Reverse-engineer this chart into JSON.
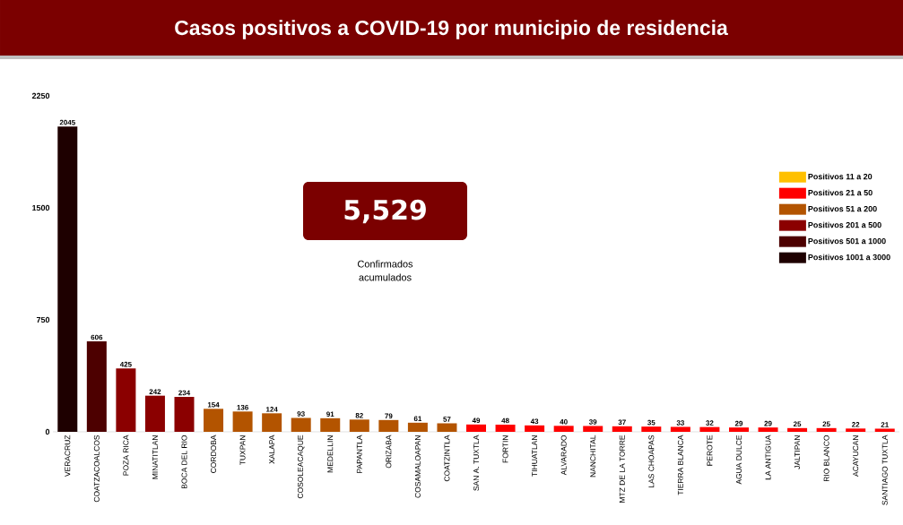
{
  "chart_data": {
    "type": "bar",
    "title": "Casos positivos a COVID-19  por municipio de residencia",
    "categories": [
      "VERACRUZ",
      "COATZACOALCOS",
      "POZA RICA",
      "MINATITLAN",
      "BOCA DEL RIO",
      "CORDOBA",
      "TUXPAN",
      "XALAPA",
      "COSOLEACAQUE",
      "MEDELLIN",
      "PAPANTLA",
      "ORIZABA",
      "COSAMALOAPAN",
      "COATZINTLA",
      "SAN A. TUXTLA",
      "FORTIN",
      "TIHUATLAN",
      "ALVARADO",
      "NANCHITAL",
      "MTZ DE LA TORRE",
      "LAS CHOAPAS",
      "TIERRA BLANCA",
      "PEROTE",
      "AGUA DULCE",
      "LA ANTIGUA",
      "JALTIPAN",
      "RIO BLANCO",
      "ACAYUCAN",
      "SANTIAGO TUXTLA"
    ],
    "series": [
      {
        "name": "Positivos 11 a 20",
        "color": "#ffc000",
        "values": [
          null,
          null,
          null,
          null,
          null,
          null,
          null,
          null,
          null,
          null,
          null,
          null,
          null,
          null,
          null,
          null,
          null,
          null,
          null,
          null,
          null,
          null,
          null,
          null,
          null,
          null,
          null,
          null,
          null
        ]
      },
      {
        "name": "Positivos 21 a 50",
        "color": "#ff0000",
        "values": [
          null,
          null,
          null,
          null,
          null,
          null,
          null,
          null,
          null,
          null,
          null,
          null,
          null,
          null,
          49,
          48,
          43,
          40,
          39,
          37,
          35,
          33,
          32,
          29,
          29,
          25,
          25,
          22,
          21
        ]
      },
      {
        "name": "Positivos 51 a 200",
        "color": "#b35400",
        "values": [
          null,
          null,
          null,
          null,
          null,
          154,
          136,
          124,
          93,
          91,
          82,
          79,
          61,
          57,
          null,
          null,
          null,
          null,
          null,
          null,
          null,
          null,
          null,
          null,
          null,
          null,
          null,
          null,
          null
        ]
      },
      {
        "name": "Positivos 201 a 500",
        "color": "#8b0000",
        "values": [
          null,
          null,
          425,
          242,
          234,
          null,
          null,
          null,
          null,
          null,
          null,
          null,
          null,
          null,
          null,
          null,
          null,
          null,
          null,
          null,
          null,
          null,
          null,
          null,
          null,
          null,
          null,
          null,
          null
        ]
      },
      {
        "name": "Positivos 501 a 1000",
        "color": "#4d0000",
        "values": [
          null,
          606,
          null,
          null,
          null,
          null,
          null,
          null,
          null,
          null,
          null,
          null,
          null,
          null,
          null,
          null,
          null,
          null,
          null,
          null,
          null,
          null,
          null,
          null,
          null,
          null,
          null,
          null,
          null
        ]
      },
      {
        "name": "Positivos 1001 a 3000",
        "color": "#1e0000",
        "values": [
          2045,
          null,
          null,
          null,
          null,
          null,
          null,
          null,
          null,
          null,
          null,
          null,
          null,
          null,
          null,
          null,
          null,
          null,
          null,
          null,
          null,
          null,
          null,
          null,
          null,
          null,
          null,
          null,
          null
        ]
      }
    ],
    "data_labels": true,
    "ylim": [
      0,
      2250
    ],
    "yticks": [
      0,
      750,
      1500,
      2250
    ],
    "legend": "right",
    "annotations": [
      "5,529",
      "Confirmados acumulados"
    ]
  }
}
